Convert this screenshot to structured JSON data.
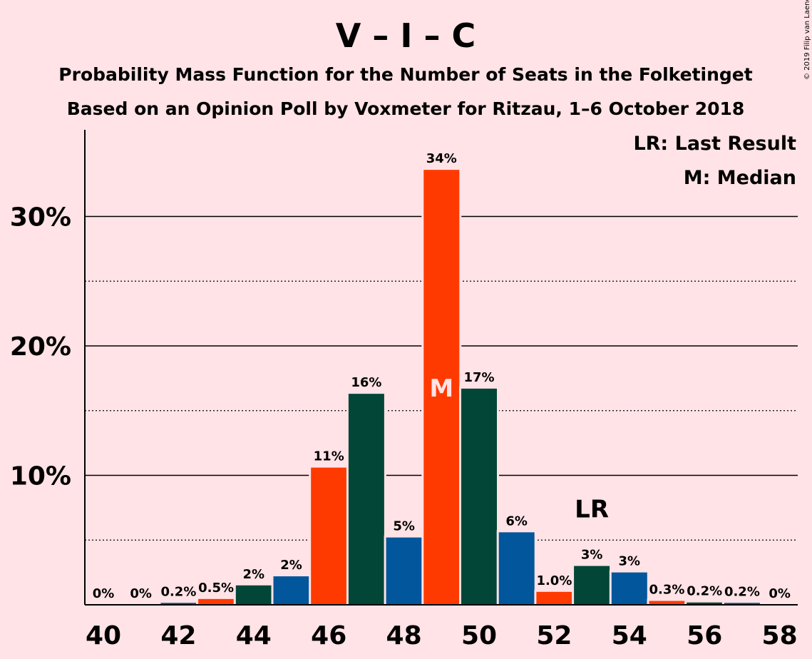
{
  "copyright": "© 2019 Filip van Laenen",
  "colors": {
    "background": "#ffe3e6",
    "party_blue": "#02569c",
    "party_red": "#ff3a00",
    "party_green": "#014637",
    "text": "#000000",
    "median_label": "#ffe3e6"
  },
  "chart_data": {
    "type": "bar",
    "title": "V – I – C",
    "subtitle1": "Probability Mass Function for the Number of Seats in the Folketinget",
    "subtitle2": "Based on an Opinion Poll by Voxmeter for Ritzau, 1–6 October 2018",
    "legend": {
      "placement": "top-right",
      "items": [
        "LR: Last Result",
        "M: Median"
      ]
    },
    "ylim": [
      0,
      37
    ],
    "y_major_ticks": [
      {
        "value": 10,
        "label": "10%"
      },
      {
        "value": 20,
        "label": "20%"
      },
      {
        "value": 30,
        "label": "30%"
      }
    ],
    "y_minor_ticks": [
      5,
      15,
      25
    ],
    "x_ticks": [
      {
        "value": 40,
        "label": "40"
      },
      {
        "value": 42,
        "label": "42"
      },
      {
        "value": 44,
        "label": "44"
      },
      {
        "value": 46,
        "label": "46"
      },
      {
        "value": 48,
        "label": "48"
      },
      {
        "value": 50,
        "label": "50"
      },
      {
        "value": 52,
        "label": "52"
      },
      {
        "value": 54,
        "label": "54"
      },
      {
        "value": 56,
        "label": "56"
      },
      {
        "value": 58,
        "label": "58"
      }
    ],
    "bars": [
      {
        "seats": 40,
        "value": 0,
        "label": "0%",
        "color": "blue"
      },
      {
        "seats": 41,
        "value": 0,
        "label": "0%",
        "color": "red"
      },
      {
        "seats": 42,
        "value": 0.15,
        "label": "0.2%",
        "color": "blue"
      },
      {
        "seats": 43,
        "value": 0.45,
        "label": "0.5%",
        "color": "red"
      },
      {
        "seats": 44,
        "value": 1.5,
        "label": "2%",
        "color": "green"
      },
      {
        "seats": 45,
        "value": 2.2,
        "label": "2%",
        "color": "blue"
      },
      {
        "seats": 46,
        "value": 10.6,
        "label": "11%",
        "color": "red"
      },
      {
        "seats": 47,
        "value": 16.3,
        "label": "16%",
        "color": "green"
      },
      {
        "seats": 48,
        "value": 5.2,
        "label": "5%",
        "color": "blue"
      },
      {
        "seats": 49,
        "value": 33.6,
        "label": "34%",
        "color": "red",
        "marker": "M"
      },
      {
        "seats": 50,
        "value": 16.7,
        "label": "17%",
        "color": "green"
      },
      {
        "seats": 51,
        "value": 5.6,
        "label": "6%",
        "color": "blue"
      },
      {
        "seats": 52,
        "value": 1.0,
        "label": "1.0%",
        "color": "red"
      },
      {
        "seats": 53,
        "value": 3.0,
        "label": "3%",
        "color": "green",
        "marker": "LR"
      },
      {
        "seats": 54,
        "value": 2.5,
        "label": "3%",
        "color": "blue"
      },
      {
        "seats": 55,
        "value": 0.3,
        "label": "0.3%",
        "color": "red"
      },
      {
        "seats": 56,
        "value": 0.18,
        "label": "0.2%",
        "color": "green"
      },
      {
        "seats": 57,
        "value": 0.15,
        "label": "0.2%",
        "color": "blue"
      },
      {
        "seats": 58,
        "value": 0,
        "label": "0%",
        "color": "red"
      }
    ]
  }
}
